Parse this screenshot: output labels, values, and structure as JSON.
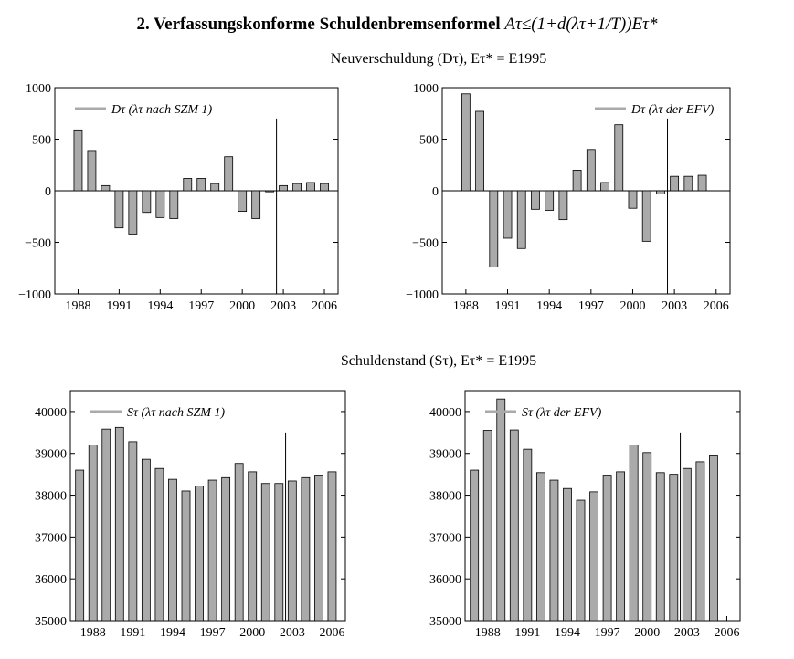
{
  "title": {
    "prefix": "2. Verfassungskonforme Schuldenbremsenformel",
    "formula": "Aτ≤(1+d(λτ+1/T))Eτ*"
  },
  "subtitles": {
    "top": "Neuverschuldung (Dτ), Eτ* = E1995",
    "bottom": "Schuldenstand (Sτ), Eτ* = E1995"
  },
  "colors": {
    "bar_fill": "#aaaaaa",
    "bar_stroke": "#000000",
    "legend_line": "#aaaaaa",
    "axis": "#000000"
  },
  "chart_data": [
    {
      "type": "bar",
      "legend": "Dτ (λτ nach SZM 1)",
      "legend_position": "top-left",
      "x_ticks": [
        "1988",
        "1991",
        "1994",
        "1997",
        "2000",
        "2003",
        "2006"
      ],
      "y_ticks": [
        "1000",
        "500",
        "0",
        "−500",
        "−1000"
      ],
      "ylim": [
        -1000,
        1000
      ],
      "zero_line": true,
      "vline_x": 2002.5,
      "x": [
        1988,
        1989,
        1990,
        1991,
        1992,
        1993,
        1994,
        1995,
        1996,
        1997,
        1998,
        1999,
        2000,
        2001,
        2002,
        2003,
        2004,
        2005,
        2006
      ],
      "values": [
        590,
        390,
        50,
        -360,
        -420,
        -210,
        -260,
        -270,
        120,
        120,
        70,
        330,
        -200,
        -270,
        -10,
        50,
        70,
        80,
        70
      ]
    },
    {
      "type": "bar",
      "legend": "Dτ (λτ der EFV)",
      "legend_position": "top-right",
      "x_ticks": [
        "1988",
        "1991",
        "1994",
        "1997",
        "2000",
        "2003",
        "2006"
      ],
      "y_ticks": [
        "1000",
        "500",
        "0",
        "−500",
        "−1000"
      ],
      "ylim": [
        -1000,
        1000
      ],
      "zero_line": true,
      "vline_x": 2002.5,
      "x": [
        1988,
        1989,
        1990,
        1991,
        1992,
        1993,
        1994,
        1995,
        1996,
        1997,
        1998,
        1999,
        2000,
        2001,
        2002,
        2003,
        2004,
        2005
      ],
      "values": [
        940,
        770,
        -740,
        -460,
        -560,
        -180,
        -190,
        -280,
        200,
        400,
        80,
        640,
        -170,
        -490,
        -30,
        140,
        140,
        150
      ]
    },
    {
      "type": "bar",
      "legend": "Sτ (λτ nach SZM 1)",
      "legend_position": "top-left",
      "x_ticks": [
        "1988",
        "1991",
        "1994",
        "1997",
        "2000",
        "2003",
        "2006"
      ],
      "y_ticks": [
        "40000",
        "39000",
        "38000",
        "37000",
        "36000",
        "35000"
      ],
      "ylim": [
        35000,
        40500
      ],
      "zero_line": false,
      "vline_x": 2002.5,
      "x": [
        1987,
        1988,
        1989,
        1990,
        1991,
        1992,
        1993,
        1994,
        1995,
        1996,
        1997,
        1998,
        1999,
        2000,
        2001,
        2002,
        2003,
        2004,
        2005,
        2006
      ],
      "values": [
        38600,
        39200,
        39580,
        39620,
        39280,
        38860,
        38640,
        38380,
        38100,
        38220,
        38360,
        38420,
        38760,
        38560,
        38280,
        38280,
        38340,
        38420,
        38480,
        38560
      ]
    },
    {
      "type": "bar",
      "legend": "Sτ (λτ der EFV)",
      "legend_position": "top-left",
      "x_ticks": [
        "1988",
        "1991",
        "1994",
        "1997",
        "2000",
        "2003",
        "2006"
      ],
      "y_ticks": [
        "40000",
        "39000",
        "38000",
        "37000",
        "36000",
        "35000"
      ],
      "ylim": [
        35000,
        40500
      ],
      "zero_line": false,
      "vline_x": 2002.5,
      "x": [
        1987,
        1988,
        1989,
        1990,
        1991,
        1992,
        1993,
        1994,
        1995,
        1996,
        1997,
        1998,
        1999,
        2000,
        2001,
        2002,
        2003,
        2004,
        2005
      ],
      "values": [
        38600,
        39550,
        40300,
        39560,
        39100,
        38540,
        38360,
        38160,
        37880,
        38080,
        38480,
        38560,
        39200,
        39020,
        38540,
        38500,
        38640,
        38800,
        38940
      ]
    }
  ]
}
